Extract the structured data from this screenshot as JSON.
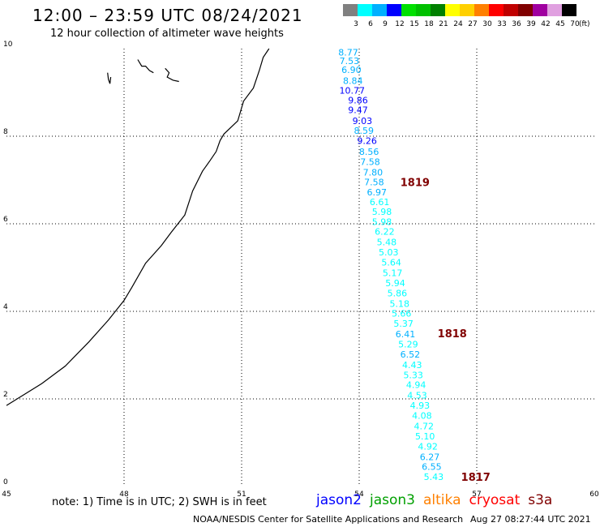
{
  "header": {
    "title": "12:00 – 23:59 UTC 08/24/2021",
    "subtitle": "12 hour collection of altimeter wave heights"
  },
  "colorbar": {
    "unit": "(ft)",
    "bins": [
      {
        "label": "3",
        "color": "#808080"
      },
      {
        "label": "6",
        "color": "#00ffff"
      },
      {
        "label": "9",
        "color": "#00b0ff"
      },
      {
        "label": "12",
        "color": "#0000ff"
      },
      {
        "label": "15",
        "color": "#00e000"
      },
      {
        "label": "18",
        "color": "#00c000"
      },
      {
        "label": "21",
        "color": "#008000"
      },
      {
        "label": "24",
        "color": "#ffff00"
      },
      {
        "label": "27",
        "color": "#ffd000"
      },
      {
        "label": "30",
        "color": "#ff8000"
      },
      {
        "label": "33",
        "color": "#ff0000"
      },
      {
        "label": "36",
        "color": "#c00000"
      },
      {
        "label": "39",
        "color": "#800000"
      },
      {
        "label": "42",
        "color": "#a000a0"
      },
      {
        "label": "45",
        "color": "#e0a0e0"
      },
      {
        "label": "70",
        "color": "#000000"
      }
    ]
  },
  "map": {
    "lon_ticks": [
      "45",
      "48",
      "51",
      "54",
      "57",
      "60"
    ],
    "lat_ticks": [
      "0",
      "2",
      "4",
      "6",
      "8",
      "10"
    ],
    "lon_range": [
      45,
      60
    ],
    "lat_range": [
      0,
      10
    ],
    "coast_points": [
      [
        45,
        1.85
      ],
      [
        45.9,
        2.35
      ],
      [
        46.5,
        2.75
      ],
      [
        47.1,
        3.3
      ],
      [
        47.6,
        3.8
      ],
      [
        48.0,
        4.25
      ],
      [
        48.2,
        4.55
      ],
      [
        48.55,
        5.1
      ],
      [
        48.95,
        5.5
      ],
      [
        49.2,
        5.8
      ],
      [
        49.55,
        6.2
      ],
      [
        49.75,
        6.75
      ],
      [
        50.0,
        7.2
      ],
      [
        50.2,
        7.45
      ],
      [
        50.35,
        7.65
      ],
      [
        50.45,
        7.9
      ],
      [
        50.55,
        8.05
      ],
      [
        50.9,
        8.35
      ],
      [
        50.95,
        8.5
      ],
      [
        51.05,
        8.8
      ],
      [
        51.3,
        9.1
      ],
      [
        51.45,
        9.5
      ],
      [
        51.55,
        9.8
      ],
      [
        51.7,
        10.0
      ]
    ],
    "islands": [
      [
        [
          47.58,
          9.45
        ],
        [
          47.6,
          9.3
        ],
        [
          47.64,
          9.2
        ],
        [
          47.66,
          9.35
        ]
      ],
      [
        [
          48.35,
          9.75
        ],
        [
          48.45,
          9.6
        ],
        [
          48.55,
          9.6
        ],
        [
          48.65,
          9.5
        ],
        [
          48.75,
          9.45
        ]
      ],
      [
        [
          49.05,
          9.55
        ],
        [
          49.15,
          9.45
        ],
        [
          49.1,
          9.35
        ],
        [
          49.25,
          9.28
        ],
        [
          49.4,
          9.25
        ]
      ]
    ],
    "track": [
      {
        "v": "8.77",
        "lon": 53.72,
        "lat": 9.92,
        "c": "#00b0ff"
      },
      {
        "v": "7.53",
        "lon": 53.75,
        "lat": 9.72,
        "c": "#00b0ff"
      },
      {
        "v": "6.90",
        "lon": 53.8,
        "lat": 9.52,
        "c": "#00b0ff"
      },
      {
        "v": "8.84",
        "lon": 53.84,
        "lat": 9.27,
        "c": "#00b0ff"
      },
      {
        "v": "10.77",
        "lon": 53.82,
        "lat": 9.05,
        "c": "#0000ff"
      },
      {
        "v": "9.86",
        "lon": 53.97,
        "lat": 8.82,
        "c": "#0000ff"
      },
      {
        "v": "9.47",
        "lon": 53.97,
        "lat": 8.6,
        "c": "#0000ff"
      },
      {
        "v": "9.03",
        "lon": 54.08,
        "lat": 8.35,
        "c": "#0000ff"
      },
      {
        "v": "8.59",
        "lon": 54.12,
        "lat": 8.13,
        "c": "#00b0ff"
      },
      {
        "v": "9.26",
        "lon": 54.2,
        "lat": 7.9,
        "c": "#0000ff"
      },
      {
        "v": "8.56",
        "lon": 54.25,
        "lat": 7.65,
        "c": "#00b0ff"
      },
      {
        "v": "7.58",
        "lon": 54.28,
        "lat": 7.42,
        "c": "#00b0ff"
      },
      {
        "v": "7.80",
        "lon": 54.35,
        "lat": 7.18,
        "c": "#00b0ff"
      },
      {
        "v": "7.58",
        "lon": 54.38,
        "lat": 6.95,
        "c": "#00b0ff"
      },
      {
        "v": "6.97",
        "lon": 54.45,
        "lat": 6.72,
        "c": "#00b0ff"
      },
      {
        "v": "6.61",
        "lon": 54.52,
        "lat": 6.5,
        "c": "#00ffff"
      },
      {
        "v": "5.98",
        "lon": 54.58,
        "lat": 6.28,
        "c": "#00ffff"
      },
      {
        "v": "5.98",
        "lon": 54.58,
        "lat": 6.05,
        "c": "#00ffff"
      },
      {
        "v": "6.22",
        "lon": 54.65,
        "lat": 5.82,
        "c": "#00ffff"
      },
      {
        "v": "5.48",
        "lon": 54.7,
        "lat": 5.58,
        "c": "#00ffff"
      },
      {
        "v": "5.03",
        "lon": 54.75,
        "lat": 5.35,
        "c": "#00ffff"
      },
      {
        "v": "5.64",
        "lon": 54.82,
        "lat": 5.12,
        "c": "#00ffff"
      },
      {
        "v": "5.17",
        "lon": 54.85,
        "lat": 4.88,
        "c": "#00ffff"
      },
      {
        "v": "5.94",
        "lon": 54.92,
        "lat": 4.65,
        "c": "#00ffff"
      },
      {
        "v": "5.86",
        "lon": 54.97,
        "lat": 4.42,
        "c": "#00ffff"
      },
      {
        "v": "5.18",
        "lon": 55.03,
        "lat": 4.18,
        "c": "#00ffff"
      },
      {
        "v": "5.66",
        "lon": 55.08,
        "lat": 3.95,
        "c": "#00ffff"
      },
      {
        "v": "5.37",
        "lon": 55.13,
        "lat": 3.72,
        "c": "#00ffff"
      },
      {
        "v": "6.41",
        "lon": 55.18,
        "lat": 3.48,
        "c": "#00b0ff"
      },
      {
        "v": "5.29",
        "lon": 55.25,
        "lat": 3.25,
        "c": "#00ffff"
      },
      {
        "v": "6.52",
        "lon": 55.3,
        "lat": 3.02,
        "c": "#00b0ff"
      },
      {
        "v": "4.43",
        "lon": 55.35,
        "lat": 2.78,
        "c": "#00ffff"
      },
      {
        "v": "5.33",
        "lon": 55.38,
        "lat": 2.55,
        "c": "#00ffff"
      },
      {
        "v": "4.94",
        "lon": 55.45,
        "lat": 2.32,
        "c": "#00ffff"
      },
      {
        "v": "4.53",
        "lon": 55.48,
        "lat": 2.08,
        "c": "#00ffff"
      },
      {
        "v": "4.93",
        "lon": 55.55,
        "lat": 1.85,
        "c": "#00ffff"
      },
      {
        "v": "4.08",
        "lon": 55.6,
        "lat": 1.62,
        "c": "#00ffff"
      },
      {
        "v": "4.72",
        "lon": 55.65,
        "lat": 1.38,
        "c": "#00ffff"
      },
      {
        "v": "5.10",
        "lon": 55.68,
        "lat": 1.15,
        "c": "#00ffff"
      },
      {
        "v": "4.92",
        "lon": 55.75,
        "lat": 0.92,
        "c": "#00ffff"
      },
      {
        "v": "6.27",
        "lon": 55.8,
        "lat": 0.68,
        "c": "#00b0ff"
      },
      {
        "v": "6.55",
        "lon": 55.85,
        "lat": 0.45,
        "c": "#00b0ff"
      },
      {
        "v": "5.43",
        "lon": 55.9,
        "lat": 0.22,
        "c": "#00ffff"
      }
    ],
    "time_labels": [
      {
        "v": "1819",
        "lon": 55.05,
        "lat": 6.95
      },
      {
        "v": "1818",
        "lon": 56.0,
        "lat": 3.5
      },
      {
        "v": "1817",
        "lon": 56.6,
        "lat": 0.22
      }
    ],
    "time_label_color": "#800000"
  },
  "footer": {
    "note": "note: 1) Time is in UTC; 2) SWH is in feet",
    "satellites": [
      {
        "name": "jason2",
        "color": "#0000ff"
      },
      {
        "name": "jason3",
        "color": "#00a000"
      },
      {
        "name": "altika",
        "color": "#ff8000"
      },
      {
        "name": "cryosat",
        "color": "#ff0000"
      },
      {
        "name": "s3a",
        "color": "#800000"
      }
    ],
    "credit": "NOAA/NESDIS Center for Satellite Applications and Research",
    "timestamp": "Aug 27 08:27:44 UTC 2021"
  }
}
